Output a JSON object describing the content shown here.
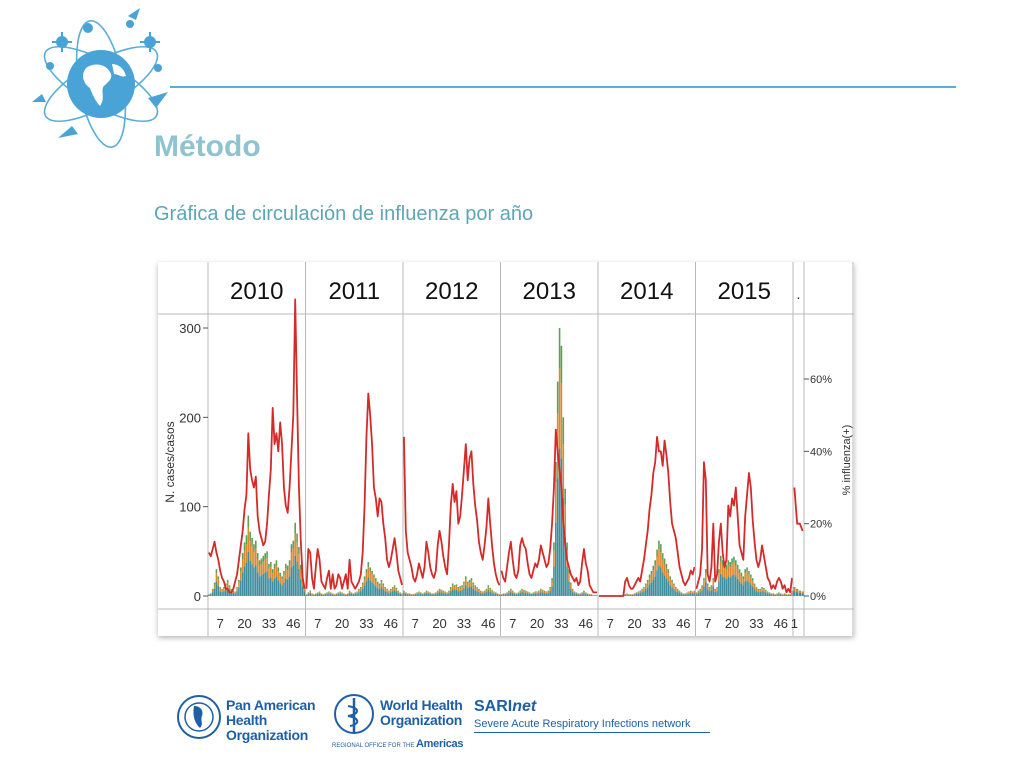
{
  "slide": {
    "title": "Método",
    "subtitle": "Gráfica de circulación de influenza por año"
  },
  "footer": {
    "paho_lines": [
      "Pan American",
      "Health",
      "Organization"
    ],
    "who_lines": [
      "World Health",
      "Organization"
    ],
    "who_sub_small": "REGIONAL OFFICE FOR THE",
    "who_sub_big": "Americas",
    "sari_brand": "SARI",
    "sari_brand_italic": "net",
    "sari_tagline": "Severe Acute Respiratory Infections network"
  },
  "chart_data": {
    "type": "bar",
    "title": "",
    "ylabel": "N. cases/casos",
    "y2label": "% influenza(+)",
    "ylim": [
      0,
      330
    ],
    "y2lim": [
      0,
      0.9
    ],
    "yticks": [
      0,
      100,
      200,
      300
    ],
    "y2ticks": [
      "0%",
      "20%",
      "40%",
      "60%"
    ],
    "y2tick_values": [
      0,
      0.2,
      0.4,
      0.6
    ],
    "xtick_labels": [
      "7",
      "20",
      "33",
      "46"
    ],
    "panels": [
      {
        "year": "2010",
        "weeks": 52
      },
      {
        "year": "2011",
        "weeks": 52
      },
      {
        "year": "2012",
        "weeks": 52
      },
      {
        "year": "2013",
        "weeks": 52
      },
      {
        "year": "2014",
        "weeks": 52
      },
      {
        "year": "2015",
        "weeks": 52
      },
      {
        "year": ".",
        "weeks": 4,
        "xticks": [
          "1"
        ]
      }
    ],
    "bar_colors": [
      "#3e8e9e",
      "#d98b33",
      "#5e9e55"
    ],
    "line_color": "#d42a2a",
    "line_series": [
      [
        0.12,
        0.11,
        0.13,
        0.15,
        0.12,
        0.1,
        0.07,
        0.05,
        0.04,
        0.02,
        0.02,
        0.01,
        0.01,
        0.02,
        0.04,
        0.06,
        0.1,
        0.14,
        0.18,
        0.24,
        0.28,
        0.45,
        0.35,
        0.32,
        0.3,
        0.33,
        0.22,
        0.18,
        0.16,
        0.14,
        0.15,
        0.2,
        0.28,
        0.35,
        0.52,
        0.42,
        0.45,
        0.4,
        0.48,
        0.42,
        0.3,
        0.25,
        0.23,
        0.3,
        0.4,
        0.5,
        0.82,
        0.55,
        0.3,
        0.15,
        0.05,
        0.02
      ],
      [
        0.02,
        0.13,
        0.12,
        0.05,
        0.02,
        0.08,
        0.13,
        0.1,
        0.04,
        0.03,
        0.02,
        0.05,
        0.07,
        0.02,
        0.06,
        0.02,
        0.03,
        0.06,
        0.05,
        0.02,
        0.04,
        0.06,
        0.02,
        0.1,
        0.04,
        0.03,
        0.02,
        0.03,
        0.04,
        0.06,
        0.12,
        0.25,
        0.44,
        0.56,
        0.5,
        0.42,
        0.3,
        0.27,
        0.22,
        0.27,
        0.26,
        0.2,
        0.16,
        0.1,
        0.08,
        0.1,
        0.13,
        0.16,
        0.12,
        0.07,
        0.05,
        0.03
      ],
      [
        0.44,
        0.18,
        0.12,
        0.1,
        0.08,
        0.05,
        0.04,
        0.06,
        0.09,
        0.07,
        0.05,
        0.08,
        0.15,
        0.12,
        0.08,
        0.06,
        0.05,
        0.07,
        0.14,
        0.18,
        0.15,
        0.11,
        0.08,
        0.06,
        0.14,
        0.25,
        0.31,
        0.26,
        0.29,
        0.2,
        0.22,
        0.28,
        0.35,
        0.42,
        0.32,
        0.38,
        0.4,
        0.31,
        0.25,
        0.21,
        0.15,
        0.12,
        0.1,
        0.14,
        0.19,
        0.27,
        0.2,
        0.14,
        0.09,
        0.06,
        0.04,
        0.03
      ],
      [
        0.07,
        0.05,
        0.04,
        0.08,
        0.12,
        0.15,
        0.1,
        0.06,
        0.05,
        0.07,
        0.14,
        0.16,
        0.14,
        0.13,
        0.09,
        0.06,
        0.05,
        0.07,
        0.09,
        0.08,
        0.1,
        0.14,
        0.12,
        0.1,
        0.08,
        0.09,
        0.13,
        0.2,
        0.3,
        0.46,
        0.4,
        0.35,
        0.3,
        0.2,
        0.14,
        0.1,
        0.08,
        0.06,
        0.05,
        0.04,
        0.05,
        0.03,
        0.04,
        0.09,
        0.13,
        0.09,
        0.07,
        0.03,
        0.02,
        0.01,
        0.01,
        0.01
      ],
      [
        0.0,
        0.0,
        0.0,
        0.0,
        0.0,
        0.0,
        0.0,
        0.0,
        0.0,
        0.0,
        0.0,
        0.0,
        0.0,
        0.0,
        0.04,
        0.05,
        0.03,
        0.02,
        0.02,
        0.03,
        0.04,
        0.05,
        0.04,
        0.07,
        0.1,
        0.14,
        0.18,
        0.24,
        0.28,
        0.34,
        0.37,
        0.44,
        0.4,
        0.4,
        0.36,
        0.43,
        0.39,
        0.34,
        0.26,
        0.2,
        0.18,
        0.16,
        0.12,
        0.08,
        0.06,
        0.04,
        0.03,
        0.04,
        0.05,
        0.07,
        0.06,
        0.08
      ],
      [
        0.02,
        0.04,
        0.06,
        0.13,
        0.37,
        0.32,
        0.06,
        0.04,
        0.08,
        0.2,
        0.04,
        0.06,
        0.15,
        0.2,
        0.12,
        0.08,
        0.1,
        0.25,
        0.22,
        0.27,
        0.25,
        0.3,
        0.22,
        0.14,
        0.12,
        0.1,
        0.22,
        0.28,
        0.34,
        0.3,
        0.21,
        0.15,
        0.1,
        0.08,
        0.1,
        0.14,
        0.11,
        0.08,
        0.05,
        0.04,
        0.02,
        0.03,
        0.02,
        0.04,
        0.05,
        0.04,
        0.02,
        0.03,
        0.01,
        0.02,
        0.01,
        0.05
      ],
      [
        0.3,
        0.2,
        0.2,
        0.18
      ]
    ],
    "bar_series": [
      [
        2,
        3,
        8,
        15,
        30,
        22,
        10,
        8,
        10,
        14,
        18,
        12,
        8,
        6,
        5,
        10,
        18,
        32,
        48,
        60,
        68,
        90,
        72,
        65,
        58,
        62,
        48,
        40,
        42,
        45,
        48,
        50,
        36,
        38,
        30,
        36,
        40,
        32,
        26,
        22,
        28,
        36,
        34,
        40,
        58,
        62,
        82,
        70,
        55,
        35,
        20,
        10
      ],
      [
        2,
        4,
        6,
        3,
        2,
        3,
        4,
        5,
        3,
        2,
        3,
        4,
        5,
        4,
        3,
        2,
        3,
        4,
        5,
        4,
        3,
        2,
        3,
        6,
        4,
        3,
        4,
        5,
        8,
        10,
        15,
        22,
        30,
        38,
        32,
        28,
        24,
        20,
        16,
        14,
        18,
        14,
        10,
        8,
        6,
        8,
        10,
        12,
        9,
        6,
        4,
        3
      ],
      [
        6,
        4,
        3,
        3,
        2,
        2,
        3,
        4,
        5,
        4,
        3,
        4,
        6,
        5,
        4,
        3,
        3,
        4,
        6,
        8,
        7,
        6,
        5,
        4,
        6,
        10,
        14,
        12,
        13,
        10,
        11,
        12,
        16,
        22,
        16,
        18,
        20,
        15,
        12,
        10,
        8,
        6,
        5,
        6,
        8,
        12,
        9,
        7,
        5,
        4,
        3,
        2
      ],
      [
        2,
        3,
        3,
        4,
        6,
        8,
        6,
        4,
        3,
        4,
        6,
        8,
        7,
        6,
        5,
        4,
        3,
        4,
        5,
        5,
        6,
        8,
        7,
        6,
        5,
        6,
        10,
        20,
        60,
        150,
        240,
        300,
        280,
        200,
        120,
        60,
        30,
        15,
        8,
        5,
        4,
        3,
        3,
        4,
        6,
        4,
        3,
        2,
        2,
        1,
        1,
        1
      ],
      [
        0,
        0,
        0,
        0,
        0,
        0,
        0,
        0,
        0,
        0,
        0,
        0,
        0,
        0,
        2,
        3,
        2,
        2,
        2,
        3,
        4,
        5,
        6,
        8,
        10,
        14,
        18,
        24,
        28,
        34,
        40,
        52,
        62,
        58,
        48,
        42,
        36,
        30,
        22,
        18,
        14,
        10,
        8,
        6,
        4,
        3,
        3,
        4,
        5,
        6,
        5,
        6
      ],
      [
        4,
        6,
        8,
        12,
        20,
        30,
        14,
        10,
        12,
        20,
        8,
        10,
        30,
        45,
        40,
        38,
        35,
        40,
        38,
        42,
        44,
        40,
        35,
        30,
        26,
        22,
        30,
        32,
        28,
        24,
        20,
        14,
        10,
        8,
        8,
        10,
        9,
        7,
        5,
        4,
        3,
        3,
        2,
        3,
        4,
        3,
        2,
        3,
        2,
        2,
        2,
        6
      ],
      [
        10,
        8,
        6,
        5
      ]
    ]
  }
}
